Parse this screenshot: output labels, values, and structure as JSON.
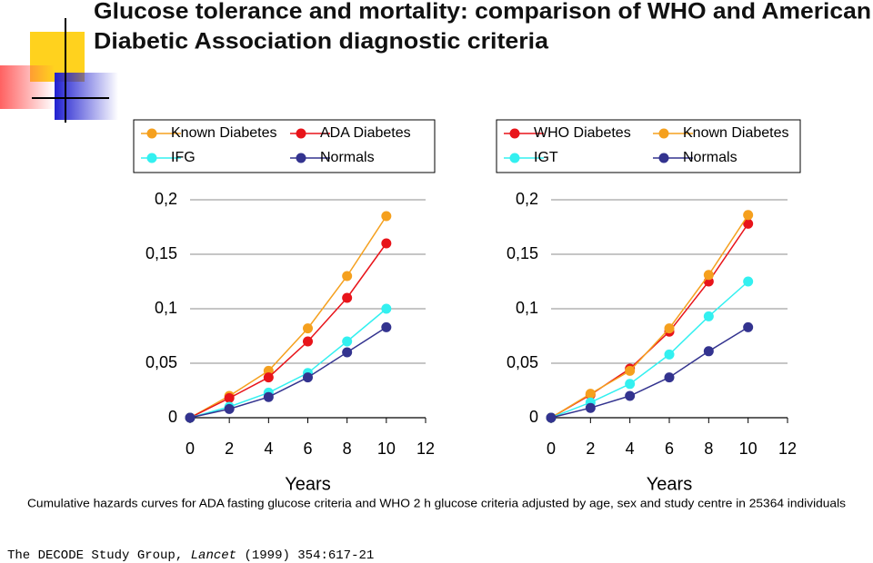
{
  "title": [
    "Glucose tolerance and mortality: comparison of WHO and American",
    "Diabetic Association diagnostic criteria"
  ],
  "caption": "Cumulative hazards curves for ADA fasting glucose criteria and WHO 2 h glucose criteria adjusted by age, sex and study centre in 25364 individuals",
  "citation": {
    "authors": "The DECODE Study Group,",
    "journal": "Lancet",
    "reference": "(1999) 354:617-21"
  },
  "chart_data": [
    {
      "type": "line",
      "x_label": "Years",
      "x": [
        0,
        2,
        4,
        6,
        8,
        10
      ],
      "xlim": [
        0,
        12
      ],
      "xticks": [
        0,
        2,
        4,
        6,
        8,
        10,
        12
      ],
      "ylim": [
        0,
        0.2
      ],
      "yticks": [
        0,
        {
          "value": 0.05,
          "label": "0,05"
        },
        {
          "value": 0.1,
          "label": "0,1"
        },
        {
          "value": 0.15,
          "label": "0,15"
        },
        {
          "value": 0.2,
          "label": "0,2"
        }
      ],
      "grid": true,
      "series": [
        {
          "name": "Known Diabetes",
          "color": "#f5a01e",
          "values": [
            0,
            0.02,
            0.043,
            0.082,
            0.13,
            0.185
          ]
        },
        {
          "name": "ADA Diabetes",
          "color": "#e8141a",
          "values": [
            0,
            0.018,
            0.037,
            0.07,
            0.11,
            0.16
          ]
        },
        {
          "name": "IFG",
          "color": "#33f0f0",
          "values": [
            0,
            0.01,
            0.023,
            0.041,
            0.07,
            0.1
          ]
        },
        {
          "name": "Normals",
          "color": "#33338f",
          "values": [
            0,
            0.008,
            0.019,
            0.037,
            0.06,
            0.083
          ]
        }
      ]
    },
    {
      "type": "line",
      "x_label": "Years",
      "x": [
        0,
        2,
        4,
        6,
        8,
        10
      ],
      "xlim": [
        0,
        12
      ],
      "xticks": [
        0,
        2,
        4,
        6,
        8,
        10,
        12
      ],
      "ylim": [
        0,
        0.2
      ],
      "yticks": [
        0,
        {
          "value": 0.05,
          "label": "0,05"
        },
        {
          "value": 0.1,
          "label": "0,1"
        },
        {
          "value": 0.15,
          "label": "0,15"
        },
        {
          "value": 0.2,
          "label": "0,2"
        }
      ],
      "grid": true,
      "series": [
        {
          "name": "WHO Diabetes",
          "color": "#e8141a",
          "values": [
            0,
            0.021,
            0.045,
            0.079,
            0.125,
            0.178
          ]
        },
        {
          "name": "Known Diabetes",
          "color": "#f5a01e",
          "values": [
            0,
            0.022,
            0.043,
            0.082,
            0.131,
            0.186
          ]
        },
        {
          "name": "IGT",
          "color": "#33f0f0",
          "values": [
            0,
            0.014,
            0.031,
            0.058,
            0.093,
            0.125
          ]
        },
        {
          "name": "Normals",
          "color": "#33338f",
          "values": [
            0,
            0.009,
            0.02,
            0.037,
            0.061,
            0.083
          ]
        }
      ]
    }
  ]
}
